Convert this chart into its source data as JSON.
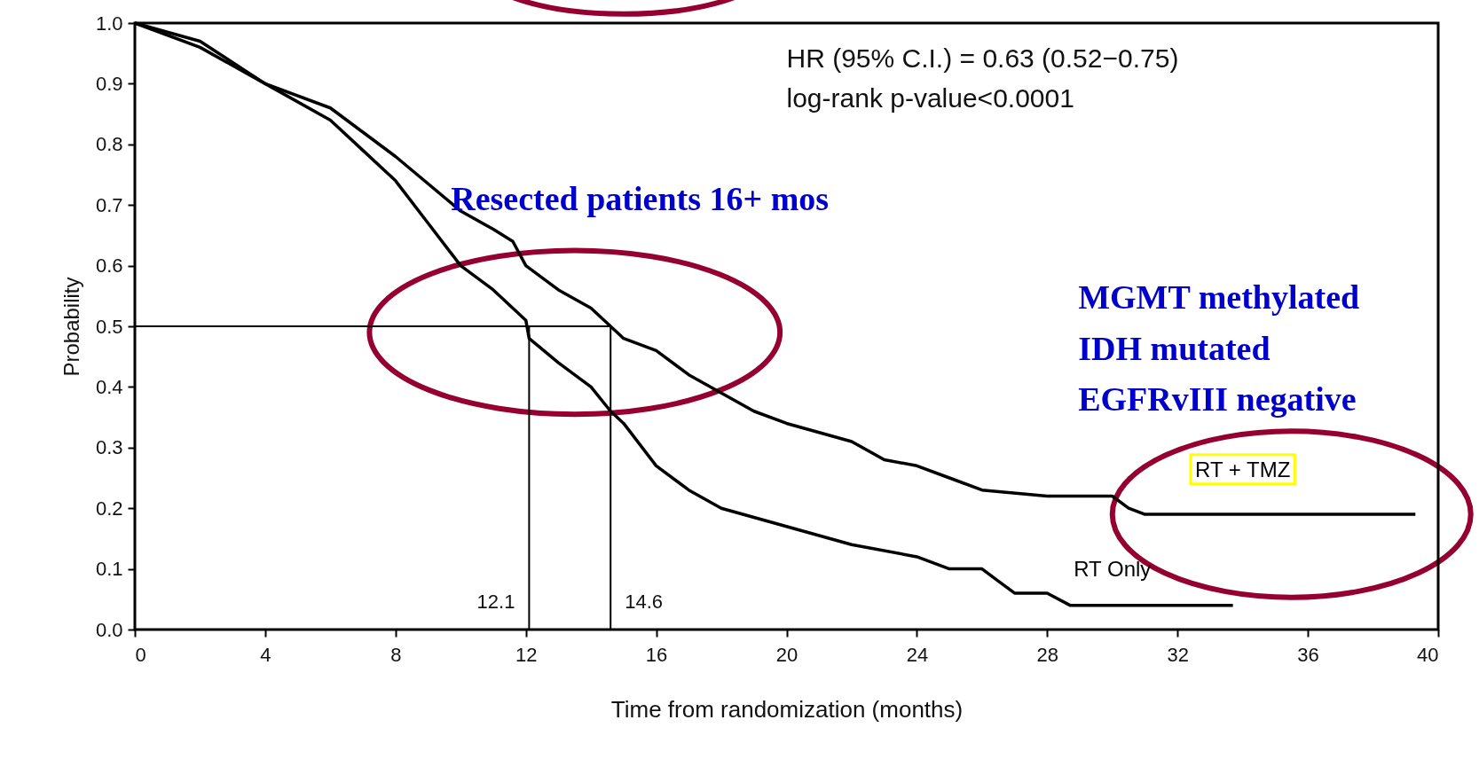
{
  "chart_data": {
    "type": "line",
    "xlabel": "Time from randomization (months)",
    "ylabel": "Probability",
    "xlim": [
      0,
      40
    ],
    "ylim": [
      0,
      1
    ],
    "xticks": [
      0,
      4,
      8,
      12,
      16,
      20,
      24,
      28,
      32,
      36,
      40
    ],
    "yticks": [
      {
        "value": 0,
        "label": "0.0"
      },
      {
        "value": 0.1,
        "label": "0.1"
      },
      {
        "value": 0.2,
        "label": "0.2"
      },
      {
        "value": 0.3,
        "label": "0.3"
      },
      {
        "value": 0.4,
        "label": "0.4"
      },
      {
        "value": 0.5,
        "label": "0.5"
      },
      {
        "value": 0.6,
        "label": "0.6"
      },
      {
        "value": 0.7,
        "label": "0.7"
      },
      {
        "value": 0.8,
        "label": "0.8"
      },
      {
        "value": 0.9,
        "label": "0.9"
      },
      {
        "value": 1,
        "label": "1.0"
      }
    ],
    "grid": false,
    "legend": false,
    "marker": "none",
    "series": [
      {
        "name": "RT + TMZ",
        "color": "#000000",
        "x": [
          0,
          2,
          4,
          6,
          8,
          10,
          11,
          11.6,
          12,
          13,
          14,
          14.6,
          15,
          16,
          17,
          18,
          19,
          20,
          22,
          23,
          24,
          25,
          26,
          28,
          30,
          30.5,
          31,
          39.3
        ],
        "values": [
          1,
          0.97,
          0.9,
          0.86,
          0.78,
          0.69,
          0.66,
          0.64,
          0.6,
          0.56,
          0.53,
          0.5,
          0.48,
          0.46,
          0.42,
          0.39,
          0.36,
          0.34,
          0.31,
          0.28,
          0.27,
          0.25,
          0.23,
          0.22,
          0.22,
          0.2,
          0.19,
          0.19
        ]
      },
      {
        "name": "RT Only",
        "color": "#000000",
        "x": [
          0,
          2,
          4,
          6,
          7,
          8,
          9,
          10,
          11,
          12,
          12.1,
          13,
          14,
          14.6,
          15,
          16,
          17,
          18,
          20,
          22,
          24,
          25,
          26,
          26.5,
          27,
          28,
          28.7,
          33.7
        ],
        "values": [
          1,
          0.96,
          0.9,
          0.84,
          0.79,
          0.74,
          0.67,
          0.6,
          0.56,
          0.51,
          0.48,
          0.44,
          0.4,
          0.36,
          0.34,
          0.27,
          0.23,
          0.2,
          0.17,
          0.14,
          0.12,
          0.1,
          0.1,
          0.08,
          0.06,
          0.06,
          0.04,
          0.04
        ]
      }
    ],
    "ref_lines": [
      {
        "axis": "y",
        "value": 0.5,
        "label": null
      },
      {
        "axis": "x",
        "value": 12.1,
        "label": "12.1"
      },
      {
        "axis": "x",
        "value": 14.6,
        "label": "14.6"
      }
    ],
    "annotations": [
      "HR (95% C.I.) = 0.63 (0.52−0.75)",
      "log-rank p-value<0.0001",
      "Resected patients 16+ mos",
      "MGMT methylated",
      "IDH mutated",
      "EGFRvIII negative"
    ]
  }
}
